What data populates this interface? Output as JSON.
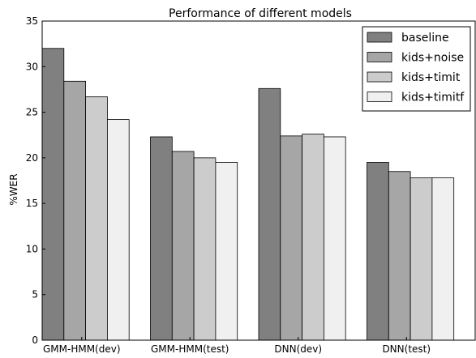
{
  "chart_data": {
    "type": "bar",
    "title": "Performance of different models",
    "xlabel": "",
    "ylabel": "%WER",
    "ylim": [
      0,
      35
    ],
    "yticks": [
      0,
      5,
      10,
      15,
      20,
      25,
      30,
      35
    ],
    "grid": false,
    "legend_position": "top-right",
    "categories": [
      "GMM-HMM(dev)",
      "GMM-HMM(test)",
      "DNN(dev)",
      "DNN(test)"
    ],
    "series": [
      {
        "name": "baseline",
        "color": "#808080",
        "values": [
          32.0,
          22.3,
          27.6,
          19.5
        ]
      },
      {
        "name": "kids+noise",
        "color": "#a6a6a6",
        "values": [
          28.4,
          20.7,
          22.4,
          18.5
        ]
      },
      {
        "name": "kids+timit",
        "color": "#cccccc",
        "values": [
          26.7,
          20.0,
          22.6,
          17.8
        ]
      },
      {
        "name": "kids+timitf",
        "color": "#f0f0f0",
        "values": [
          24.2,
          19.5,
          22.3,
          17.8
        ]
      }
    ]
  }
}
